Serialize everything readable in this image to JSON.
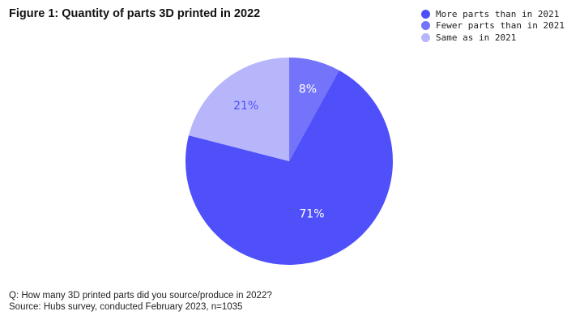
{
  "chart_data": {
    "type": "pie",
    "title": "Figure 1: Quantity of parts 3D printed in 2022",
    "slices": [
      {
        "label": "Fewer parts than in 2021",
        "value": 8,
        "display": "8%",
        "color": "#7474fb"
      },
      {
        "label": "More parts than in 2021",
        "value": 71,
        "display": "71%",
        "color": "#5050fb"
      },
      {
        "label": "Same as in 2021",
        "value": 21,
        "display": "21%",
        "color": "#b7b6fb"
      }
    ],
    "legend": [
      {
        "label": "More parts than in 2021",
        "color": "#5050fb"
      },
      {
        "label": "Fewer parts than in 2021",
        "color": "#7474fb"
      },
      {
        "label": "Same as in 2021",
        "color": "#b7b6fb"
      }
    ],
    "legend_position": "top-right",
    "start": "top, clockwise"
  },
  "footer": {
    "question": "Q: How many 3D printed parts did you source/produce in 2022?",
    "source": "Source: Hubs survey, conducted February 2023, n=1035"
  }
}
